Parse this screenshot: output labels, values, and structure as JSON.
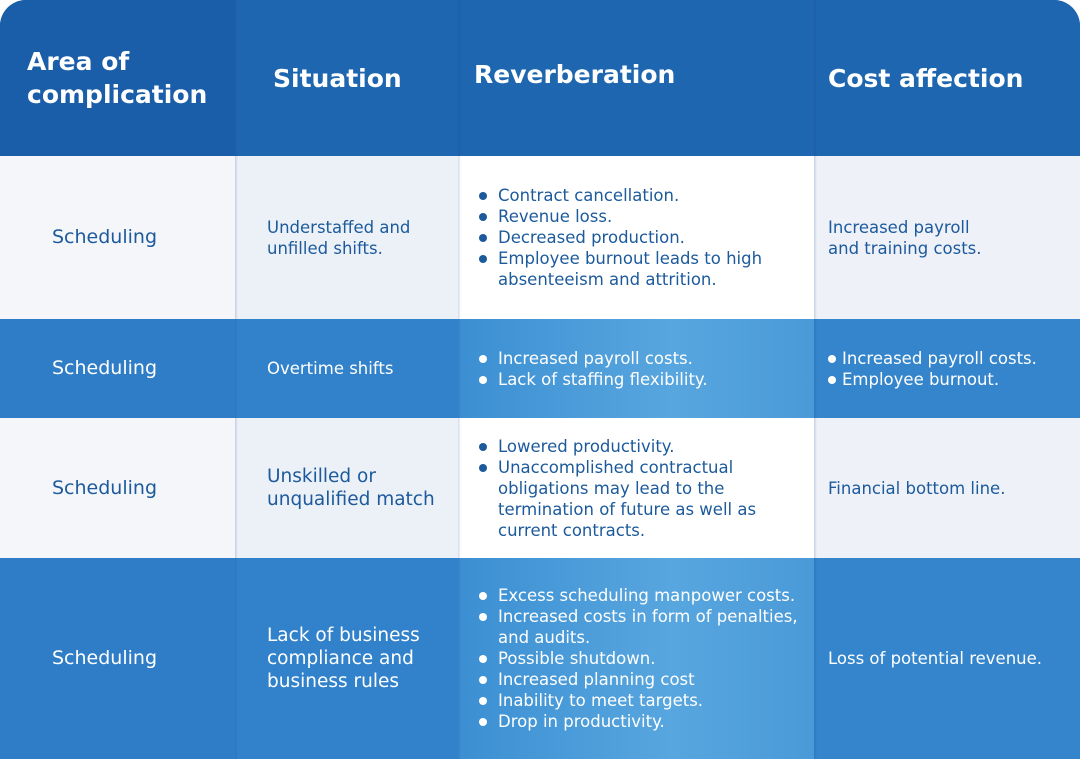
{
  "header": {
    "area": "Area of complication",
    "situation": "Situation",
    "reverberation": "Reverberation",
    "cost": "Cost affection"
  },
  "rows": [
    {
      "area": "Scheduling",
      "situation": "Understaffed and unfilled shifts.",
      "reverberation": [
        "Contract cancellation.",
        "Revenue loss.",
        "Decreased production.",
        "Employee burnout leads to high absenteeism and attrition."
      ],
      "cost": [
        "Increased payroll and training costs."
      ]
    },
    {
      "area": "Scheduling",
      "situation": "Overtime shifts",
      "reverberation": [
        "Increased payroll costs.",
        "Lack of staffing flexibility."
      ],
      "cost": [
        "Increased payroll costs.",
        "Employee burnout."
      ]
    },
    {
      "area": "Scheduling",
      "situation": "Unskilled or unqualified match",
      "reverberation": [
        "Lowered productivity.",
        "Unaccomplished contractual obligations may lead to the termination of future as well as current contracts."
      ],
      "cost": [
        "Financial bottom line."
      ]
    },
    {
      "area": "Scheduling",
      "situation": "Lack of business compliance and business rules",
      "reverberation": [
        "Excess scheduling manpower costs.",
        "Increased costs in form of penalties, and audits.",
        "Possible shutdown.",
        "Increased planning cost",
        "Inability to meet targets.",
        "Drop in productivity."
      ],
      "cost": [
        "Loss of potential revenue."
      ]
    }
  ]
}
